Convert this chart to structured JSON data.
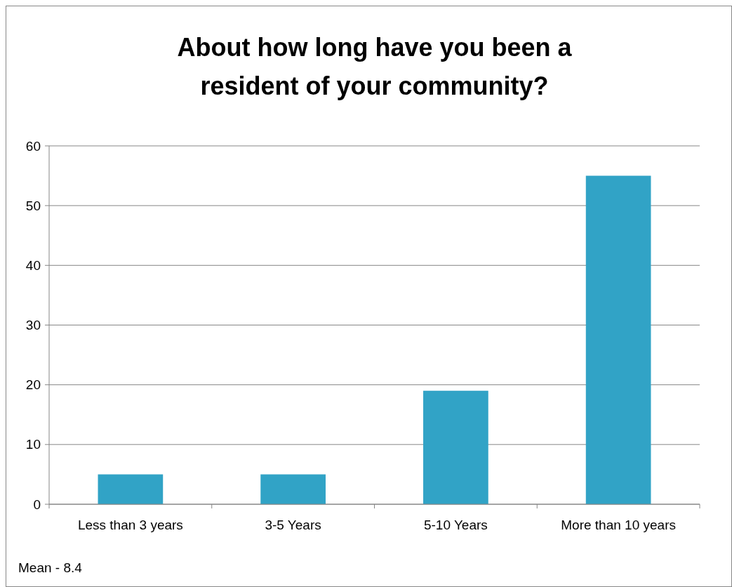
{
  "chart_data": {
    "type": "bar",
    "title": "About how long have you been a resident of your community?",
    "categories": [
      "Less than 3 years",
      "3-5 Years",
      "5-10 Years",
      "More than 10 years"
    ],
    "values": [
      5,
      5,
      19,
      55
    ],
    "color": "#31a3c6",
    "ylim": [
      0,
      60
    ],
    "yticks": [
      0,
      10,
      20,
      30,
      40,
      50,
      60
    ],
    "grid": "y",
    "annotations": [
      "Mean - 8.4"
    ]
  }
}
